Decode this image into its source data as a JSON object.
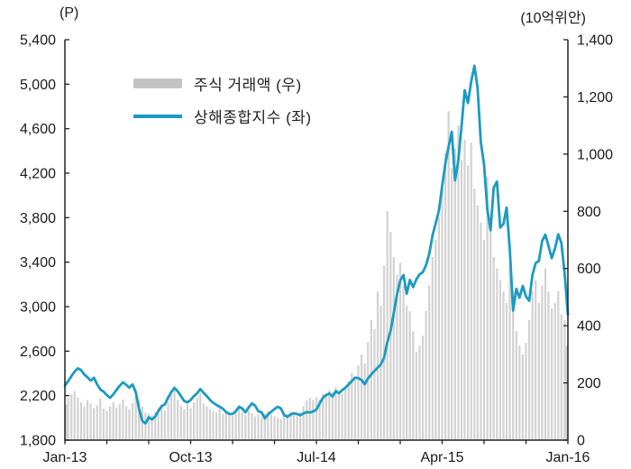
{
  "header": {
    "left_axis_unit": "(P)",
    "right_axis_unit": "(10억위안)"
  },
  "legend": [
    {
      "swatch": "bar",
      "color": "#c3c3c3",
      "label": "주식 거래액 (우)"
    },
    {
      "swatch": "line",
      "color": "#1b9bc0",
      "label": "상해종합지수 (좌)"
    }
  ],
  "chart_data": {
    "type": "line+bar",
    "title": "",
    "x_axis": {
      "labels": [
        "Jan-13",
        "Oct-13",
        "Jul-14",
        "Apr-15",
        "Jan-16"
      ],
      "label_positions_months": [
        0,
        9,
        18,
        27,
        36
      ],
      "total_months": 36,
      "minor_tick_months": 3
    },
    "left_axis": {
      "unit": "(P)",
      "min": 1800,
      "max": 5400,
      "step": 400,
      "tick_values": [
        5400,
        5000,
        4600,
        4200,
        3800,
        3400,
        3000,
        2600,
        2200,
        1800
      ],
      "tick_labels": [
        "5,400",
        "5,000",
        "4,600",
        "4,200",
        "3,800",
        "3,400",
        "3,000",
        "2,600",
        "2,200",
        "1,800"
      ]
    },
    "right_axis": {
      "unit": "(10억위안)",
      "min": 0,
      "max": 1400,
      "step": 200,
      "tick_values": [
        1400,
        1200,
        1000,
        800,
        600,
        400,
        200,
        0
      ],
      "tick_labels": [
        "1,400",
        "1,200",
        "1,000",
        "800",
        "600",
        "400",
        "200",
        "0"
      ]
    },
    "grid": false,
    "legend_position": "upper-left-inside",
    "series": [
      {
        "name": "주식 거래액 (우)",
        "type": "bar",
        "axis": "right",
        "color": "#d2d2d2",
        "values": [
          125,
          148,
          160,
          172,
          150,
          132,
          118,
          140,
          128,
          112,
          122,
          145,
          110,
          102,
          118,
          132,
          114,
          126,
          142,
          118,
          108,
          130,
          152,
          138,
          118,
          96,
          92,
          88,
          98,
          112,
          124,
          104,
          132,
          158,
          178,
          142,
          120,
          108,
          126,
          112,
          132,
          148,
          165,
          128,
          118,
          108,
          102,
          96,
          112,
          92,
          98,
          88,
          85,
          96,
          112,
          98,
          88,
          104,
          95,
          84,
          90,
          78,
          94,
          102,
          88,
          84,
          78,
          74,
          86,
          92,
          100,
          94,
          84,
          95,
          118,
          138,
          148,
          140,
          150,
          142,
          162,
          155,
          175,
          168,
          185,
          172,
          162,
          182,
          205,
          235,
          215,
          262,
          300,
          268,
          342,
          420,
          388,
          520,
          470,
          610,
          800,
          728,
          640,
          580,
          620,
          540,
          470,
          450,
          380,
          310,
          330,
          365,
          452,
          540,
          640,
          700,
          780,
          900,
          1005,
          1150,
          950,
          1020,
          1100,
          980,
          1050,
          960,
          1040,
          880,
          820,
          760,
          700,
          920,
          760,
          640,
          600,
          560,
          520,
          480,
          600,
          520,
          380,
          330,
          300,
          340,
          420,
          520,
          560,
          480,
          540,
          600,
          520,
          460,
          480,
          520,
          440,
          420,
          330
        ]
      },
      {
        "name": "상해종합지수 (좌)",
        "type": "line",
        "axis": "left",
        "color": "#1b9bc0",
        "values": [
          2290,
          2330,
          2375,
          2415,
          2445,
          2430,
          2390,
          2365,
          2335,
          2360,
          2300,
          2256,
          2236,
          2205,
          2180,
          2212,
          2252,
          2288,
          2320,
          2298,
          2272,
          2300,
          2228,
          2080,
          1975,
          1950,
          2006,
          1986,
          2012,
          2062,
          2106,
          2122,
          2182,
          2232,
          2270,
          2238,
          2196,
          2152,
          2140,
          2162,
          2196,
          2222,
          2260,
          2226,
          2196,
          2162,
          2136,
          2116,
          2100,
          2082,
          2052,
          2036,
          2035,
          2060,
          2100,
          2085,
          2050,
          2095,
          2130,
          2110,
          2060,
          2050,
          1995,
          2030,
          2055,
          2080,
          2100,
          2085,
          2026,
          2010,
          2030,
          2042,
          2035,
          2025,
          2040,
          2052,
          2048,
          2058,
          2075,
          2130,
          2180,
          2205,
          2220,
          2192,
          2240,
          2222,
          2250,
          2272,
          2302,
          2332,
          2362,
          2358,
          2340,
          2302,
          2355,
          2390,
          2422,
          2452,
          2482,
          2542,
          2682,
          2782,
          2942,
          3110,
          3235,
          3285,
          3116,
          3240,
          3175,
          3246,
          3290,
          3310,
          3372,
          3475,
          3640,
          3748,
          3863,
          4084,
          4288,
          4441,
          4572,
          4135,
          4310,
          4620,
          4946,
          4830,
          5023,
          5166,
          4967,
          4478,
          4277,
          3877,
          3687,
          4070,
          4124,
          3710,
          3744,
          3890,
          3508,
          2965,
          3160,
          3080,
          3186,
          3092,
          3053,
          3287,
          3391,
          3412,
          3590,
          3647,
          3544,
          3436,
          3525,
          3650,
          3572,
          3296,
          2930
        ]
      }
    ]
  }
}
